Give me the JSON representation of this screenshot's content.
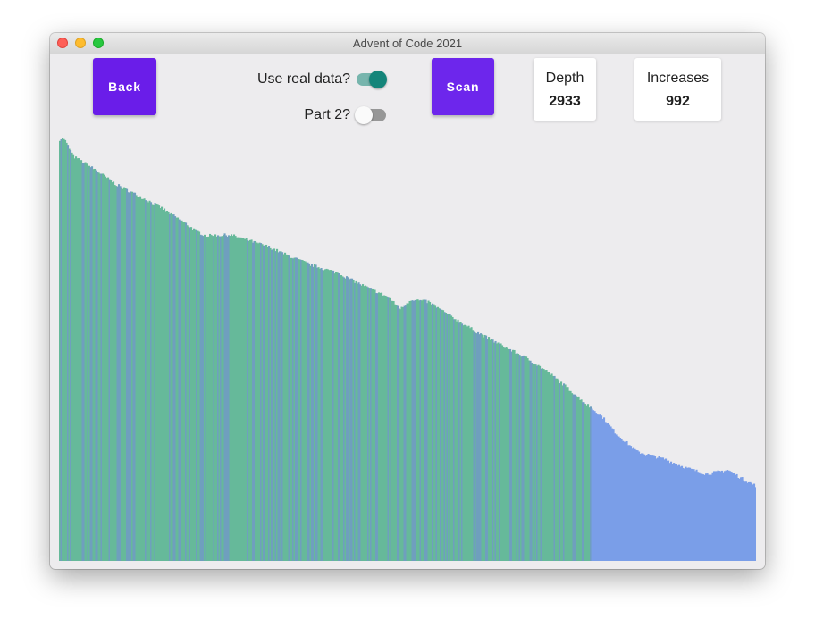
{
  "window": {
    "title": "Advent of Code 2021"
  },
  "controls": {
    "back_label": "Back",
    "scan_label": "Scan",
    "use_real_data_label": "Use real data?",
    "use_real_data": true,
    "part2_label": "Part 2?",
    "part2": false
  },
  "stats": {
    "depth_label": "Depth",
    "depth_value": "2933",
    "increases_label": "Increases",
    "increases_value": "992"
  },
  "colors": {
    "accent": "#6a1de9",
    "toggle_on": "#15857a",
    "bar_scanned_a": "#66b99a",
    "bar_scanned_b": "#6f9fbe",
    "bar_pending": "#7a9ee8"
  },
  "chart_data": {
    "type": "bar",
    "description_of_series": "sonar depth readings, scanned portion vs pending portion",
    "scanned_fraction": 0.765,
    "profile": [
      [
        0,
        0.996
      ],
      [
        0.005,
        1.0
      ],
      [
        0.02,
        0.955
      ],
      [
        0.05,
        0.925
      ],
      [
        0.08,
        0.89
      ],
      [
        0.11,
        0.865
      ],
      [
        0.14,
        0.84
      ],
      [
        0.18,
        0.798
      ],
      [
        0.195,
        0.78
      ],
      [
        0.21,
        0.768
      ],
      [
        0.245,
        0.77
      ],
      [
        0.27,
        0.758
      ],
      [
        0.3,
        0.742
      ],
      [
        0.33,
        0.72
      ],
      [
        0.36,
        0.7
      ],
      [
        0.4,
        0.68
      ],
      [
        0.43,
        0.655
      ],
      [
        0.47,
        0.625
      ],
      [
        0.48,
        0.61
      ],
      [
        0.49,
        0.595
      ],
      [
        0.505,
        0.618
      ],
      [
        0.53,
        0.612
      ],
      [
        0.56,
        0.58
      ],
      [
        0.6,
        0.54
      ],
      [
        0.64,
        0.505
      ],
      [
        0.67,
        0.48
      ],
      [
        0.7,
        0.448
      ],
      [
        0.72,
        0.422
      ],
      [
        0.75,
        0.38
      ],
      [
        0.765,
        0.36
      ],
      [
        0.78,
        0.34
      ],
      [
        0.8,
        0.3
      ],
      [
        0.83,
        0.258
      ],
      [
        0.87,
        0.24
      ],
      [
        0.9,
        0.22
      ],
      [
        0.93,
        0.205
      ],
      [
        0.96,
        0.215
      ],
      [
        0.98,
        0.195
      ],
      [
        1.0,
        0.178
      ]
    ]
  }
}
